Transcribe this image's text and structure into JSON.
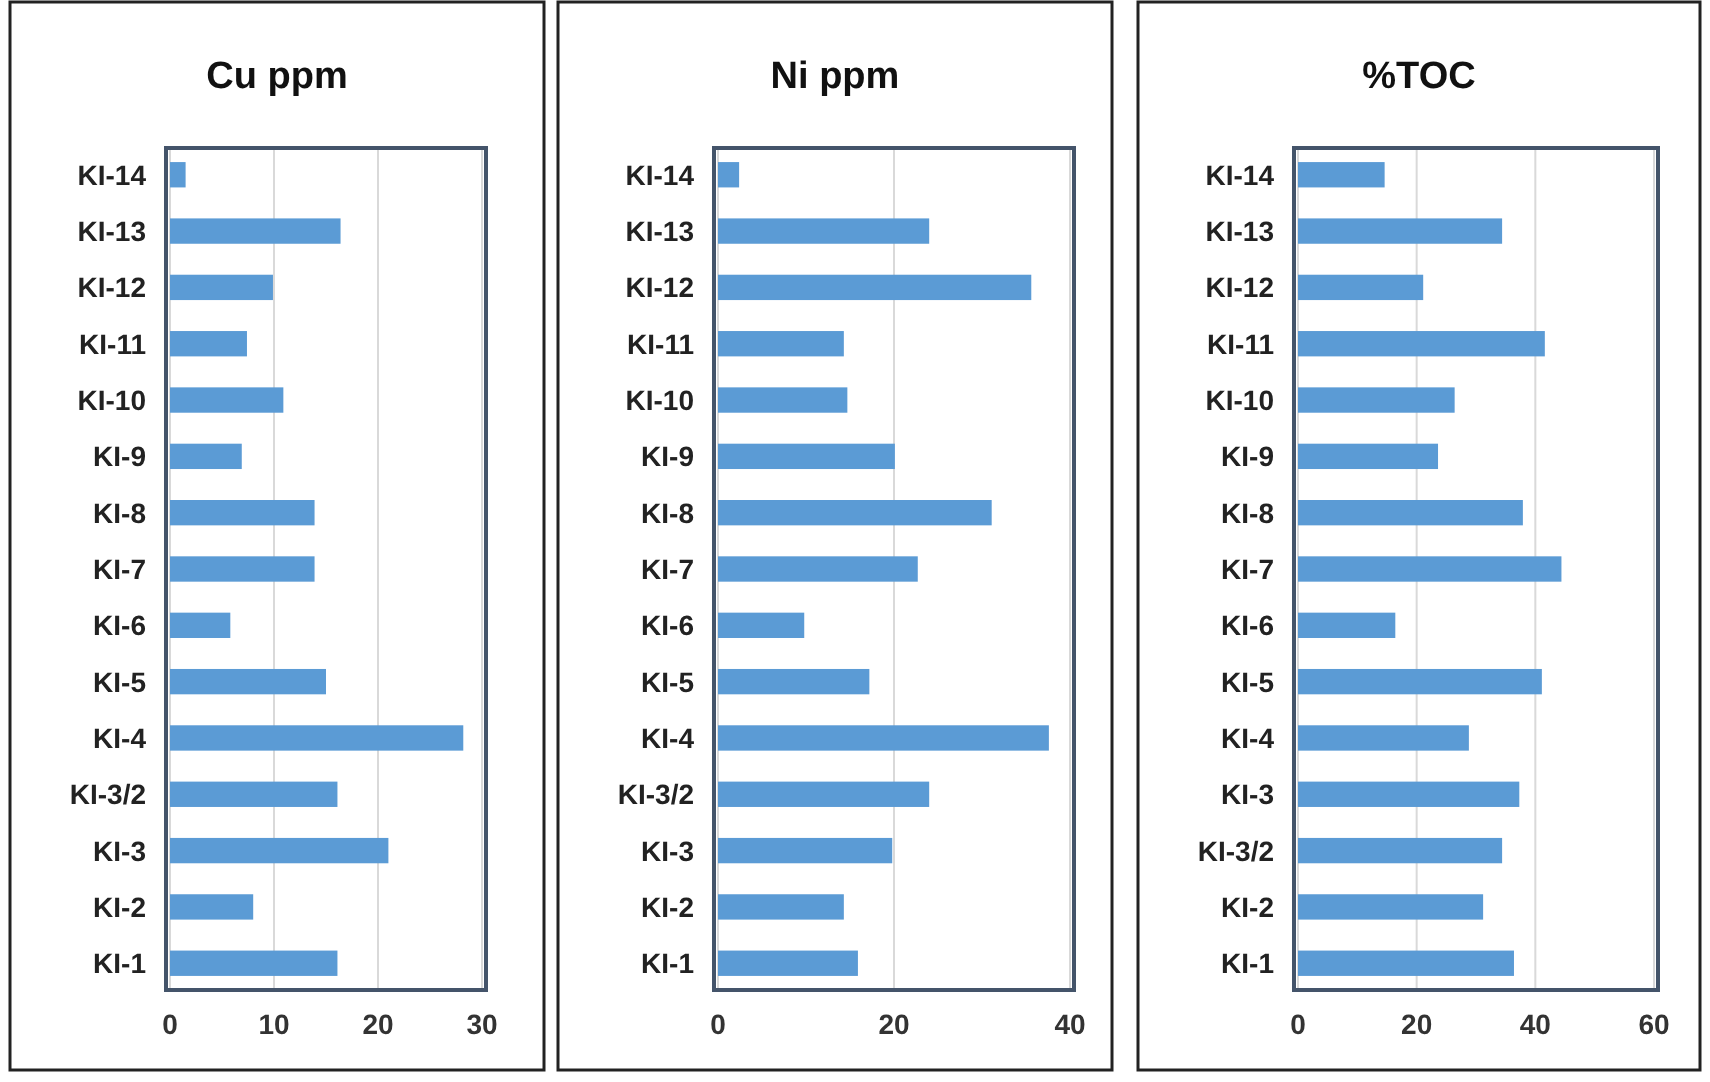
{
  "chart_data": [
    {
      "type": "bar",
      "orientation": "horizontal",
      "title": "Cu ppm",
      "categories": [
        "KI-14",
        "KI-13",
        "KI-12",
        "KI-11",
        "KI-10",
        "KI-9",
        "KI-8",
        "KI-7",
        "KI-6",
        "KI-5",
        "KI-4",
        "KI-3/2",
        "KI-3",
        "KI-2",
        "KI-1"
      ],
      "values": [
        1.5,
        16.4,
        9.9,
        7.4,
        10.9,
        6.9,
        13.9,
        13.9,
        5.8,
        15.0,
        28.2,
        16.1,
        21.0,
        8.0,
        16.1
      ],
      "color": "#5b9bd5",
      "xlim": [
        0,
        30
      ],
      "xticks": [
        0,
        10,
        20,
        30
      ],
      "grid": "x"
    },
    {
      "type": "bar",
      "orientation": "horizontal",
      "title": "Ni ppm",
      "categories": [
        "KI-14",
        "KI-13",
        "KI-12",
        "KI-11",
        "KI-10",
        "KI-9",
        "KI-8",
        "KI-7",
        "KI-6",
        "KI-5",
        "KI-4",
        "KI-3/2",
        "KI-3",
        "KI-2",
        "KI-1"
      ],
      "values": [
        2.4,
        24.0,
        35.6,
        14.3,
        14.7,
        20.1,
        31.1,
        22.7,
        9.8,
        17.2,
        37.6,
        24.0,
        19.8,
        14.3,
        15.9
      ],
      "color": "#5b9bd5",
      "xlim": [
        0,
        40
      ],
      "xticks": [
        0,
        20,
        40
      ],
      "grid": "x"
    },
    {
      "type": "bar",
      "orientation": "horizontal",
      "title": "%TOC",
      "categories": [
        "KI-14",
        "KI-13",
        "KI-12",
        "KI-11",
        "KI-10",
        "KI-9",
        "KI-8",
        "KI-7",
        "KI-6",
        "KI-5",
        "KI-4",
        "KI-3",
        "KI-3/2",
        "KI-2",
        "KI-1"
      ],
      "values": [
        14.6,
        34.4,
        21.1,
        41.6,
        26.4,
        23.6,
        37.9,
        44.4,
        16.4,
        41.1,
        28.8,
        37.3,
        34.4,
        31.2,
        36.4
      ],
      "color": "#5b9bd5",
      "xlim": [
        0,
        60
      ],
      "xticks": [
        0,
        20,
        40,
        60
      ],
      "grid": "x"
    }
  ]
}
